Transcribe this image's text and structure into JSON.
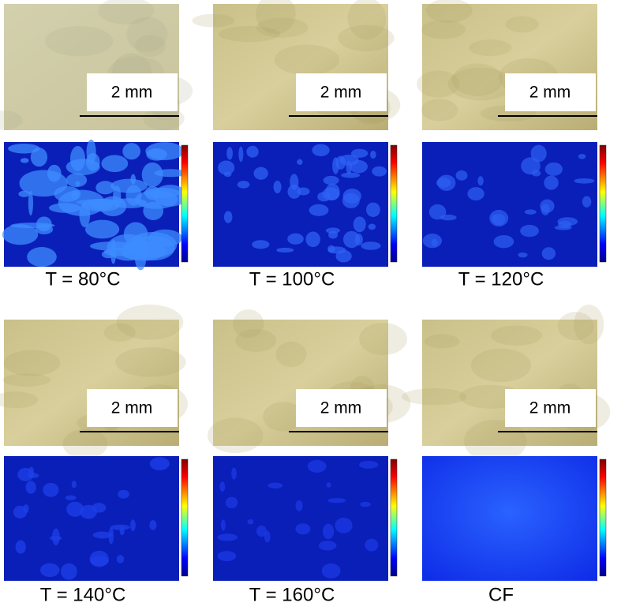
{
  "panels": [
    {
      "label": "T = 80°C",
      "scale_bar": "2 mm"
    },
    {
      "label": "T = 100°C",
      "scale_bar": "2 mm"
    },
    {
      "label": "T = 120°C",
      "scale_bar": "2 mm"
    },
    {
      "label": "T = 140°C",
      "scale_bar": "2 mm"
    },
    {
      "label": "T = 160°C",
      "scale_bar": "2 mm"
    },
    {
      "label": "CF",
      "scale_bar": "2 mm"
    }
  ]
}
